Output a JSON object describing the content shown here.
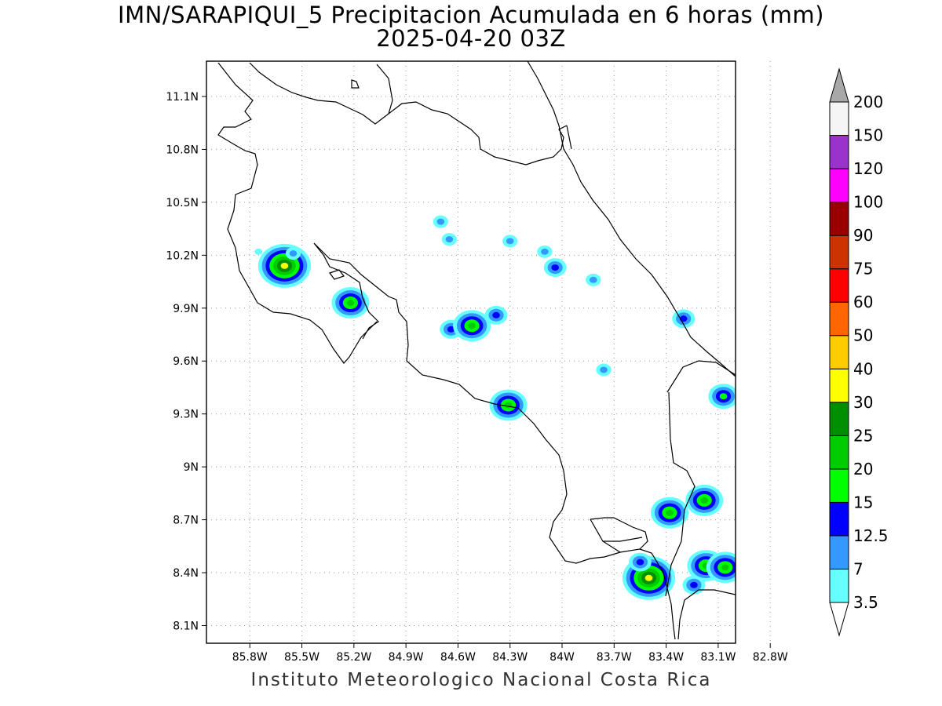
{
  "title": {
    "line1": "IMN/SARAPIQUI_5 Precipitacion Acumulada en 6 horas (mm)",
    "line2": "2025-04-20 03Z"
  },
  "footer": "Instituto Meteorologico Nacional Costa Rica",
  "map": {
    "lon_range": [
      -86.05,
      -83.0
    ],
    "lat_range": [
      8.0,
      11.3
    ],
    "lat_ticks": [
      {
        "value": 11.1,
        "label": "11.1N"
      },
      {
        "value": 10.8,
        "label": "10.8N"
      },
      {
        "value": 10.5,
        "label": "10.5N"
      },
      {
        "value": 10.2,
        "label": "10.2N"
      },
      {
        "value": 9.9,
        "label": "9.9N"
      },
      {
        "value": 9.6,
        "label": "9.6N"
      },
      {
        "value": 9.3,
        "label": "9.3N"
      },
      {
        "value": 9.0,
        "label": "9N"
      },
      {
        "value": 8.7,
        "label": "8.7N"
      },
      {
        "value": 8.4,
        "label": "8.4N"
      },
      {
        "value": 8.1,
        "label": "8.1N"
      }
    ],
    "lon_ticks": [
      {
        "value": -85.8,
        "label": "85.8W"
      },
      {
        "value": -85.5,
        "label": "85.5W"
      },
      {
        "value": -85.2,
        "label": "85.2W"
      },
      {
        "value": -84.9,
        "label": "84.9W"
      },
      {
        "value": -84.6,
        "label": "84.6W"
      },
      {
        "value": -84.3,
        "label": "84.3W"
      },
      {
        "value": -84.0,
        "label": "84W"
      },
      {
        "value": -83.7,
        "label": "83.7W"
      },
      {
        "value": -83.4,
        "label": "83.4W"
      },
      {
        "value": -83.1,
        "label": "83.1W"
      },
      {
        "value": -82.8,
        "label": "82.8W"
      }
    ],
    "grid": "dotted",
    "precip_cells": [
      {
        "lon": -85.6,
        "lat": 10.14,
        "value": 30
      },
      {
        "lon": -85.75,
        "lat": 10.22,
        "value": 3.5
      },
      {
        "lon": -85.55,
        "lat": 10.21,
        "value": 7
      },
      {
        "lon": -85.22,
        "lat": 9.93,
        "value": 20
      },
      {
        "lon": -84.7,
        "lat": 10.39,
        "value": 7
      },
      {
        "lon": -84.65,
        "lat": 10.29,
        "value": 7
      },
      {
        "lon": -84.3,
        "lat": 10.28,
        "value": 7
      },
      {
        "lon": -84.1,
        "lat": 10.22,
        "value": 7
      },
      {
        "lon": -84.04,
        "lat": 10.13,
        "value": 12.5
      },
      {
        "lon": -83.82,
        "lat": 10.06,
        "value": 7
      },
      {
        "lon": -84.64,
        "lat": 9.78,
        "value": 12.5
      },
      {
        "lon": -84.52,
        "lat": 9.8,
        "value": 20
      },
      {
        "lon": -84.38,
        "lat": 9.86,
        "value": 12.5
      },
      {
        "lon": -84.31,
        "lat": 9.35,
        "value": 20
      },
      {
        "lon": -83.76,
        "lat": 9.55,
        "value": 7
      },
      {
        "lon": -83.3,
        "lat": 9.84,
        "value": 12.5
      },
      {
        "lon": -83.07,
        "lat": 9.4,
        "value": 15
      },
      {
        "lon": -83.5,
        "lat": 8.37,
        "value": 30
      },
      {
        "lon": -83.38,
        "lat": 8.74,
        "value": 20
      },
      {
        "lon": -83.18,
        "lat": 8.81,
        "value": 20
      },
      {
        "lon": -83.17,
        "lat": 8.44,
        "value": 20
      },
      {
        "lon": -83.06,
        "lat": 8.43,
        "value": 20
      },
      {
        "lon": -83.24,
        "lat": 8.33,
        "value": 12.5
      },
      {
        "lon": -83.55,
        "lat": 8.46,
        "value": 12.5
      }
    ]
  },
  "colorbar": {
    "levels": [
      "3.5",
      "7",
      "12.5",
      "15",
      "20",
      "25",
      "30",
      "40",
      "50",
      "60",
      "75",
      "90",
      "100",
      "120",
      "150",
      "200"
    ],
    "colors": [
      "#66ffff",
      "#3399ff",
      "#0000ff",
      "#00ff00",
      "#00cc00",
      "#008f00",
      "#ffff00",
      "#ffcc00",
      "#ff6600",
      "#ff0000",
      "#cc3300",
      "#990000",
      "#ff00ff",
      "#9933cc",
      "#f5f5f5",
      "#a8a8a8"
    ]
  }
}
